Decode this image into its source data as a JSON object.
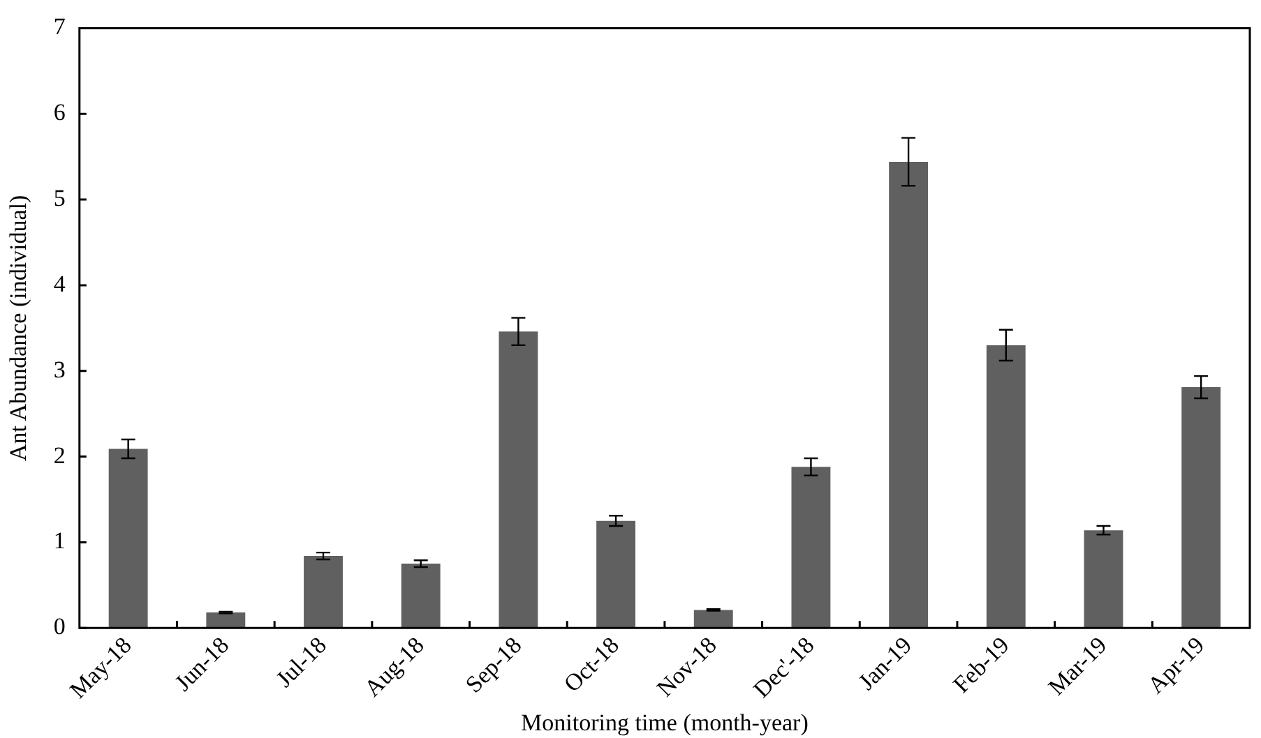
{
  "chart_data": {
    "type": "bar",
    "xlabel": "Monitoring time (month-year)",
    "ylabel": "Ant Abundance (individual)",
    "categories": [
      "May-18",
      "Jun-18",
      "Jul-18",
      "Aug-18",
      "Sep-18",
      "Oct-18",
      "Nov-18",
      "Dec'-18",
      "Jan-19",
      "Feb-19",
      "Mar-19",
      "Apr-19"
    ],
    "values": [
      2.09,
      0.18,
      0.84,
      0.75,
      3.46,
      1.25,
      0.21,
      1.88,
      5.44,
      3.3,
      1.14,
      2.81
    ],
    "errors": [
      0.11,
      0.01,
      0.04,
      0.04,
      0.16,
      0.06,
      0.01,
      0.1,
      0.28,
      0.18,
      0.05,
      0.13
    ],
    "color": "#606060",
    "ylim": [
      0,
      7
    ],
    "yticks": [
      0,
      1,
      2,
      3,
      4,
      5,
      6,
      7
    ],
    "grid": false,
    "legend": false
  }
}
